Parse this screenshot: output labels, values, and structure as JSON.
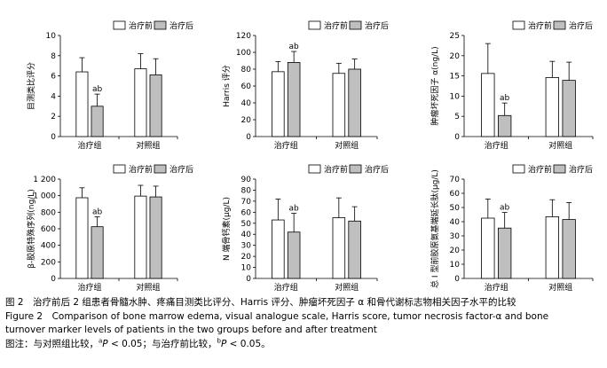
{
  "legend": {
    "before": "治疗前",
    "after": "治疗后"
  },
  "chart_data": [
    {
      "type": "bar",
      "ylabel": "目测类比评分",
      "ylim": [
        0,
        10
      ],
      "yticks": [
        0,
        2,
        4,
        6,
        8,
        10
      ],
      "categories": [
        "治疗组",
        "对照组"
      ],
      "series": [
        {
          "name": "治疗前",
          "values": [
            6.4,
            6.7
          ],
          "errors": [
            1.4,
            1.5
          ]
        },
        {
          "name": "治疗后",
          "values": [
            3.0,
            6.1
          ],
          "errors": [
            1.2,
            1.6
          ]
        }
      ],
      "annotation": {
        "text": "ab",
        "category": 0,
        "series": 1
      }
    },
    {
      "type": "bar",
      "ylabel": "Harris 评分",
      "ylim": [
        0,
        120
      ],
      "yticks": [
        0,
        20,
        40,
        60,
        80,
        100,
        120
      ],
      "categories": [
        "治疗组",
        "对照组"
      ],
      "series": [
        {
          "name": "治疗前",
          "values": [
            77,
            75
          ],
          "errors": [
            12,
            12
          ]
        },
        {
          "name": "治疗后",
          "values": [
            88,
            80
          ],
          "errors": [
            13,
            12
          ]
        }
      ],
      "annotation": {
        "text": "ab",
        "category": 0,
        "series": 1
      }
    },
    {
      "type": "bar",
      "ylabel": "肿瘤坏死因子 α(ng/L)",
      "ylim": [
        0,
        25
      ],
      "yticks": [
        0,
        5,
        10,
        15,
        20,
        25
      ],
      "categories": [
        "治疗组",
        "对照组"
      ],
      "series": [
        {
          "name": "治疗前",
          "values": [
            15.6,
            14.6
          ],
          "errors": [
            7.4,
            4.0
          ]
        },
        {
          "name": "治疗后",
          "values": [
            5.2,
            13.9
          ],
          "errors": [
            3.1,
            4.5
          ]
        }
      ],
      "annotation": {
        "text": "ab",
        "category": 0,
        "series": 1
      }
    },
    {
      "type": "bar",
      "ylabel": "β-胶原特殊序列(ng/L)",
      "ylim": [
        0,
        1200
      ],
      "yticks": [
        0,
        200,
        400,
        600,
        800,
        1000,
        1200
      ],
      "categories": [
        "治疗组",
        "对照组"
      ],
      "series": [
        {
          "name": "治疗前",
          "values": [
            975,
            995
          ],
          "errors": [
            120,
            130
          ]
        },
        {
          "name": "治疗后",
          "values": [
            625,
            985
          ],
          "errors": [
            120,
            130
          ]
        }
      ],
      "annotation": {
        "text": "ab",
        "category": 0,
        "series": 1
      }
    },
    {
      "type": "bar",
      "ylabel": "N 端骨钙素(μg/L)",
      "ylim": [
        0,
        90
      ],
      "yticks": [
        0,
        10,
        20,
        30,
        40,
        50,
        60,
        70,
        80,
        90
      ],
      "categories": [
        "治疗组",
        "对照组"
      ],
      "series": [
        {
          "name": "治疗前",
          "values": [
            53,
            55
          ],
          "errors": [
            19,
            18
          ]
        },
        {
          "name": "治疗后",
          "values": [
            42,
            52
          ],
          "errors": [
            17,
            13
          ]
        }
      ],
      "annotation": {
        "text": "ab",
        "category": 0,
        "series": 1
      }
    },
    {
      "type": "bar",
      "ylabel": "总 I 型前胶原氨基端延长肽(μg/L)",
      "ylim": [
        0,
        70
      ],
      "yticks": [
        0,
        10,
        20,
        30,
        40,
        50,
        60,
        70
      ],
      "categories": [
        "治疗组",
        "对照组"
      ],
      "series": [
        {
          "name": "治疗前",
          "values": [
            42.5,
            43.5
          ],
          "errors": [
            13.5,
            12.0
          ]
        },
        {
          "name": "治疗后",
          "values": [
            35.5,
            41.5
          ],
          "errors": [
            11.0,
            12.0
          ]
        }
      ],
      "annotation": {
        "text": "ab",
        "category": 0,
        "series": 1
      }
    }
  ],
  "caption": {
    "zh": "图 2　治疗前后 2 组患者骨髓水肿、疼痛目测类比评分、Harris 评分、肿瘤坏死因子 α 和骨代谢标志物相关因子水平的比较",
    "en": "Figure 2　Comparison of bone marrow edema, visual analogue scale, Harris score, tumor necrosis factor-α and bone turnover marker levels of patients in the two groups before and after treatment",
    "note_prefix": "图注：与对照组比较，",
    "note_a": "a",
    "note_p1": "P",
    "note_mid": " < 0.05；与治疗前比较，",
    "note_b": "b",
    "note_p2": "P",
    "note_end": " < 0.05。"
  },
  "colors": {
    "before": "#ffffff",
    "after": "#bfbfbf",
    "stroke": "#000000"
  }
}
